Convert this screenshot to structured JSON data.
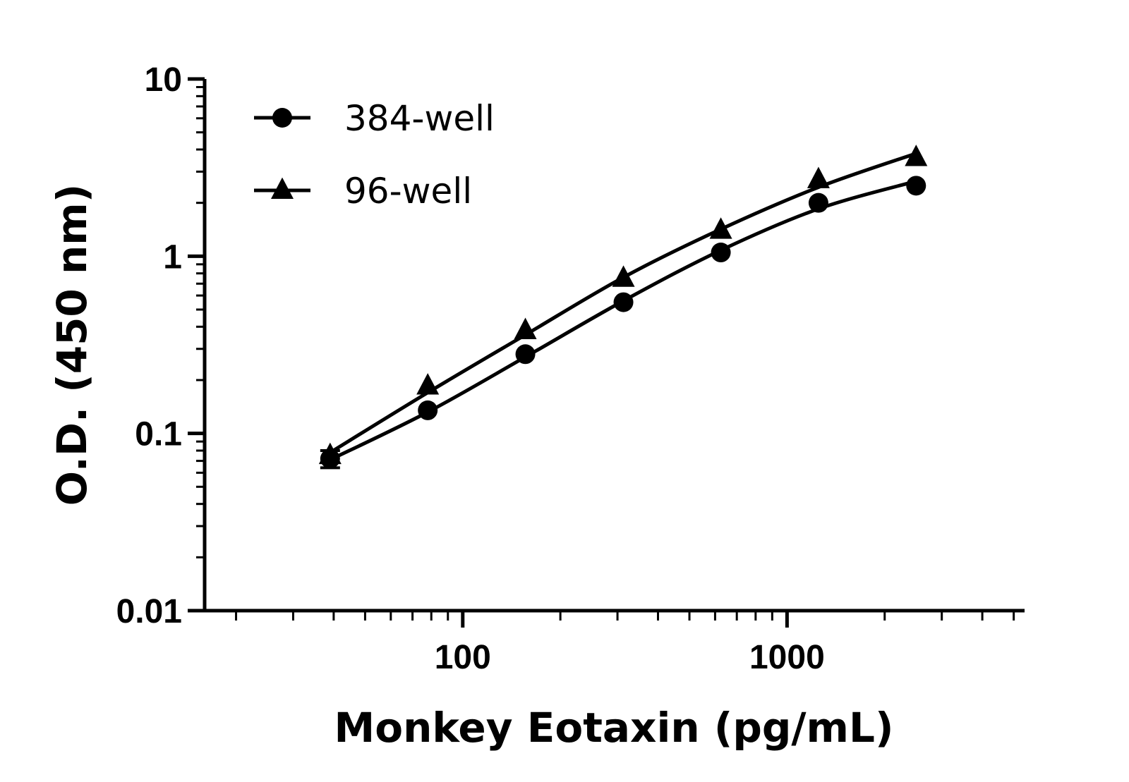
{
  "chart_data": {
    "type": "scatter",
    "title": "",
    "xlabel": "Monkey Eotaxin (pg/mL)",
    "ylabel": "O.D. (450 nm)",
    "x_scale": "log",
    "y_scale": "log",
    "xlim": [
      16,
      5400
    ],
    "ylim": [
      0.01,
      10
    ],
    "x_tick_labels": [
      "100",
      "1000"
    ],
    "y_tick_labels": [
      "10",
      "1",
      "0.1",
      "0.01"
    ],
    "grid": false,
    "legend_position": "top-left",
    "series": [
      {
        "name": "384-well",
        "marker": "circle",
        "color": "#000000",
        "x": [
          39,
          78,
          156,
          313,
          625,
          1250,
          2500
        ],
        "y": [
          0.072,
          0.135,
          0.28,
          0.55,
          1.05,
          2.0,
          2.5
        ],
        "curve_y": [
          0.071,
          0.132,
          0.27,
          0.56,
          1.08,
          1.85,
          2.65
        ]
      },
      {
        "name": "96-well",
        "marker": "triangle",
        "color": "#000000",
        "x": [
          39,
          78,
          156,
          313,
          625,
          1250,
          2500
        ],
        "y": [
          0.075,
          0.185,
          0.38,
          0.75,
          1.4,
          2.7,
          3.6
        ],
        "curve_y": [
          0.078,
          0.17,
          0.36,
          0.76,
          1.42,
          2.45,
          3.8
        ]
      }
    ]
  }
}
